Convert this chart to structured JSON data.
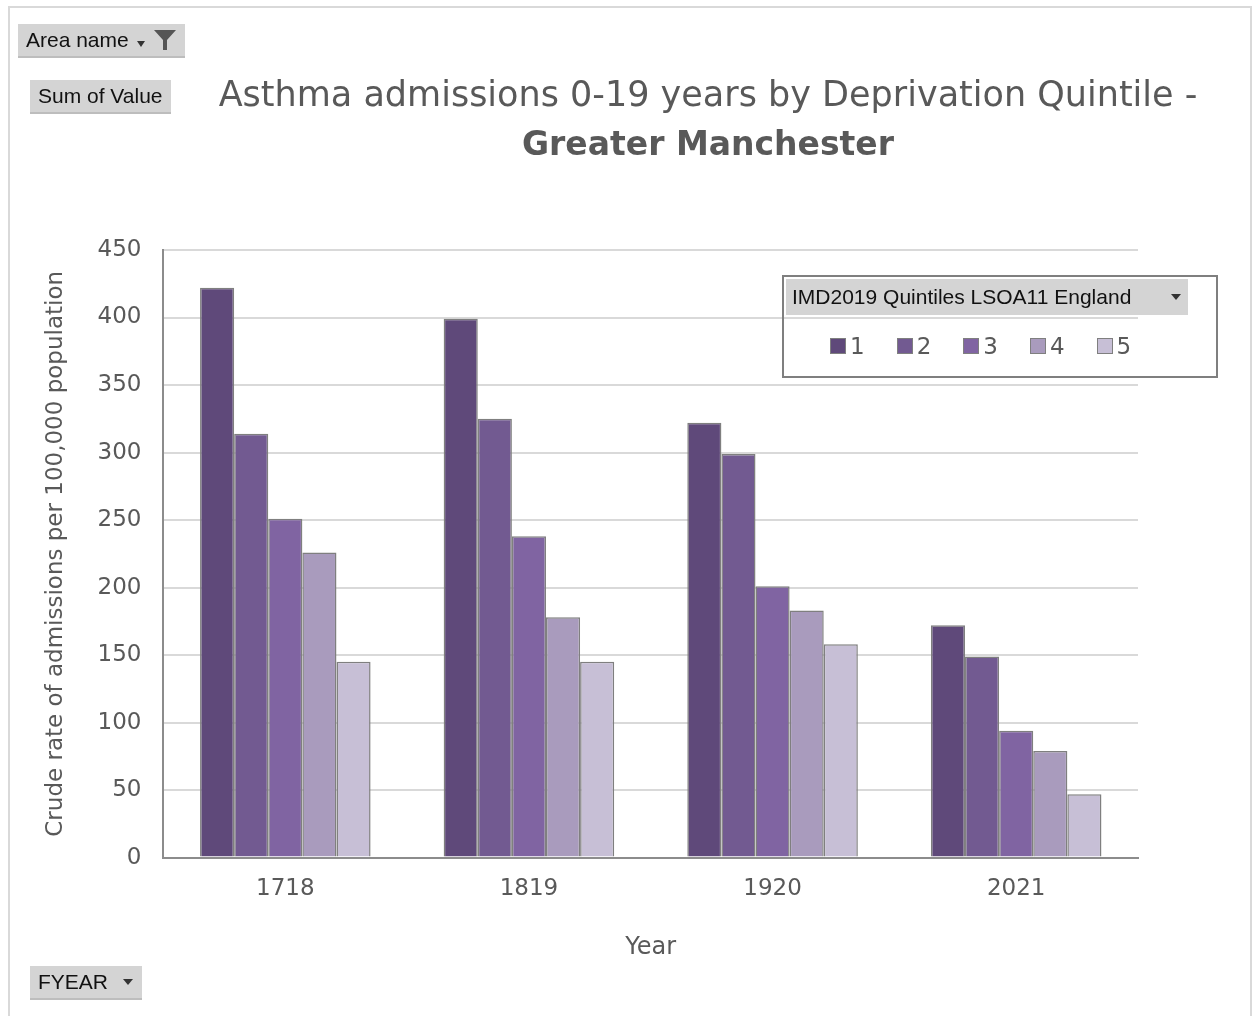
{
  "chart_data": {
    "type": "bar",
    "title": "Asthma admissions 0-19 years by Deprivation Quintile -",
    "subtitle": "Greater Manchester",
    "xlabel": "Year",
    "ylabel": "Crude rate of admissions per 100,000 population",
    "legend_title": "IMD2019 Quintiles LSOA11 England",
    "annotations": [
      "Area name",
      "Sum of Value",
      "FYEAR"
    ],
    "categories": [
      "1718",
      "1819",
      "1920",
      "2021"
    ],
    "series": [
      {
        "name": "1",
        "color": "#5f497a",
        "values": [
          422,
          399,
          322,
          172
        ]
      },
      {
        "name": "2",
        "color": "#725a91",
        "values": [
          314,
          325,
          299,
          149
        ]
      },
      {
        "name": "3",
        "color": "#8064a2",
        "values": [
          251,
          238,
          201,
          94
        ]
      },
      {
        "name": "4",
        "color": "#a99bbd",
        "values": [
          226,
          178,
          183,
          79
        ]
      },
      {
        "name": "5",
        "color": "#c7bfd6",
        "values": [
          145,
          145,
          158,
          47
        ]
      }
    ],
    "ylim": [
      0,
      450
    ],
    "yticks": [
      0,
      50,
      100,
      150,
      200,
      250,
      300,
      350,
      400,
      450
    ],
    "grid": "y",
    "legend": "top right"
  }
}
